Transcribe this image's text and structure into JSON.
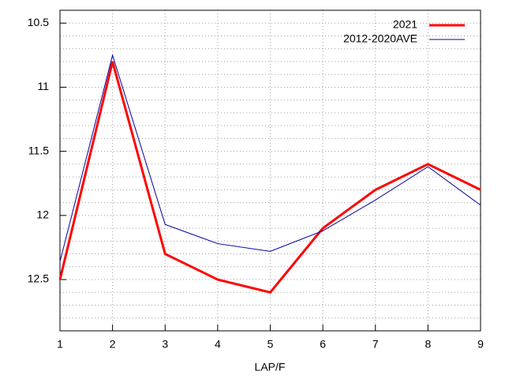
{
  "chart_data": {
    "type": "line",
    "x_label": "LAP/F",
    "x": [
      1,
      2,
      3,
      4,
      5,
      6,
      7,
      8,
      9
    ],
    "series": [
      {
        "name": "2021",
        "color": "#ff0000",
        "line_width": 3,
        "values": [
          12.5,
          10.8,
          12.3,
          12.5,
          12.6,
          12.1,
          11.8,
          11.6,
          11.8
        ]
      },
      {
        "name": "2012-2020AVE",
        "color": "#0000a0",
        "line_width": 1,
        "values": [
          12.36,
          10.75,
          12.07,
          12.22,
          12.28,
          12.12,
          11.88,
          11.62,
          11.92
        ]
      }
    ],
    "xlim": [
      1,
      9
    ],
    "xticks": [
      1,
      2,
      3,
      4,
      5,
      6,
      7,
      8,
      9
    ],
    "ylim": [
      10.4,
      12.9
    ],
    "y_inverted": true,
    "yticks": [
      10.5,
      11,
      11.5,
      12,
      12.5
    ],
    "y_minor_ticks": [
      10.4,
      10.6,
      10.7,
      10.8,
      10.9,
      11.1,
      11.2,
      11.3,
      11.4,
      11.6,
      11.7,
      11.8,
      11.9,
      12.1,
      12.2,
      12.3,
      12.4,
      12.6,
      12.7,
      12.8,
      12.9
    ],
    "grid": true,
    "legend": "top-right"
  }
}
